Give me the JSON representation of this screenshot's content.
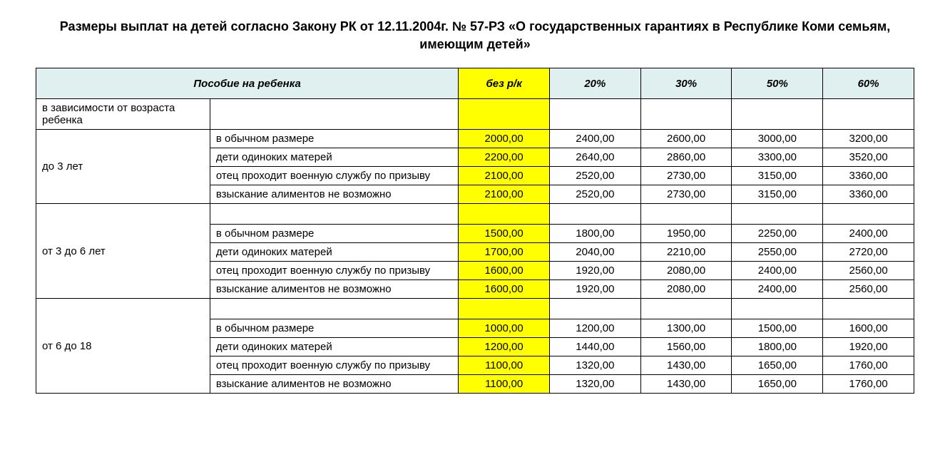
{
  "title": "Размеры выплат на детей согласно Закону РК от 12.11.2004г. № 57-РЗ «О государственных гарантиях в Республике Коми семьям, имеющим детей»",
  "headers": {
    "main": "Пособие на ребенка",
    "col_base": "без р/к",
    "col_20": "20%",
    "col_30": "30%",
    "col_50": "50%",
    "col_60": "60%"
  },
  "colors": {
    "header_bg": "#e0f0f0",
    "highlight_bg": "#ffff00",
    "border": "#000000",
    "background": "#ffffff"
  },
  "subheader": "в зависимости от возраста ребенка",
  "groups": [
    {
      "age_label": "до 3 лет",
      "rows": [
        {
          "label": "в обычном размере",
          "base": "2000,00",
          "p20": "2400,00",
          "p30": "2600,00",
          "p50": "3000,00",
          "p60": "3200,00"
        },
        {
          "label": "дети одиноких матерей",
          "base": "2200,00",
          "p20": "2640,00",
          "p30": "2860,00",
          "p50": "3300,00",
          "p60": "3520,00"
        },
        {
          "label": "отец проходит военную службу по призыву",
          "base": "2100,00",
          "p20": "2520,00",
          "p30": "2730,00",
          "p50": "3150,00",
          "p60": "3360,00"
        },
        {
          "label": "взыскание алиментов не возможно",
          "base": "2100,00",
          "p20": "2520,00",
          "p30": "2730,00",
          "p50": "3150,00",
          "p60": "3360,00"
        }
      ]
    },
    {
      "age_label": "от 3 до 6 лет",
      "rows": [
        {
          "label": "в обычном размере",
          "base": "1500,00",
          "p20": "1800,00",
          "p30": "1950,00",
          "p50": "2250,00",
          "p60": "2400,00"
        },
        {
          "label": "дети одиноких матерей",
          "base": "1700,00",
          "p20": "2040,00",
          "p30": "2210,00",
          "p50": "2550,00",
          "p60": "2720,00"
        },
        {
          "label": "отец проходит военную службу по призыву",
          "base": "1600,00",
          "p20": "1920,00",
          "p30": "2080,00",
          "p50": "2400,00",
          "p60": "2560,00"
        },
        {
          "label": "взыскание алиментов не возможно",
          "base": "1600,00",
          "p20": "1920,00",
          "p30": "2080,00",
          "p50": "2400,00",
          "p60": "2560,00"
        }
      ]
    },
    {
      "age_label": "от 6 до 18",
      "rows": [
        {
          "label": "в обычном размере",
          "base": "1000,00",
          "p20": "1200,00",
          "p30": "1300,00",
          "p50": "1500,00",
          "p60": "1600,00"
        },
        {
          "label": "дети одиноких матерей",
          "base": "1200,00",
          "p20": "1440,00",
          "p30": "1560,00",
          "p50": "1800,00",
          "p60": "1920,00"
        },
        {
          "label": "отец проходит военную службу по призыву",
          "base": "1100,00",
          "p20": "1320,00",
          "p30": "1430,00",
          "p50": "1650,00",
          "p60": "1760,00"
        },
        {
          "label": "взыскание алиментов не возможно",
          "base": "1100,00",
          "p20": "1320,00",
          "p30": "1430,00",
          "p50": "1650,00",
          "p60": "1760,00"
        }
      ]
    }
  ]
}
